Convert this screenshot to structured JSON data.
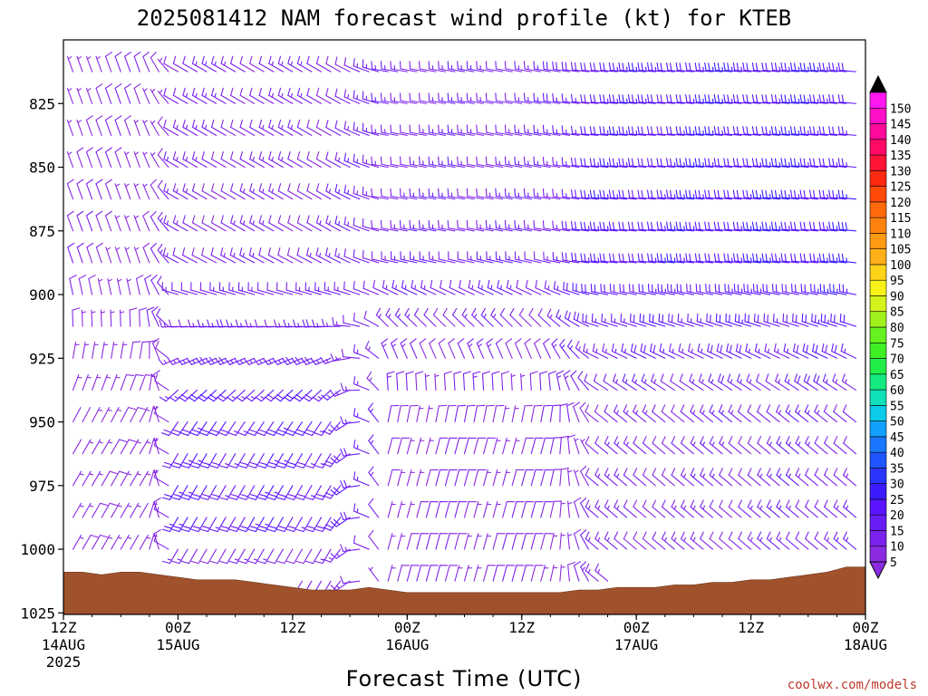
{
  "chart_data": {
    "type": "wind-barb-time-height",
    "title": "2025081412 NAM forecast wind profile (kt) for KTEB",
    "xlabel": "Forecast Time (UTC)",
    "ylabel": "",
    "credit": "coolwx.com/models",
    "y_axis": {
      "unit": "mb",
      "inverted": true,
      "ylim": [
        1025,
        800
      ],
      "ticks": [
        825,
        850,
        875,
        900,
        925,
        950,
        975,
        1000,
        1025
      ]
    },
    "x_axis": {
      "xlim_hours": [
        0,
        84
      ],
      "ticks": [
        {
          "hour": 0,
          "lines": [
            "12Z",
            "14AUG",
            "2025"
          ]
        },
        {
          "hour": 12,
          "lines": [
            "00Z",
            "15AUG"
          ]
        },
        {
          "hour": 24,
          "lines": [
            "12Z"
          ]
        },
        {
          "hour": 36,
          "lines": [
            "00Z",
            "16AUG"
          ]
        },
        {
          "hour": 48,
          "lines": [
            "12Z"
          ]
        },
        {
          "hour": 60,
          "lines": [
            "00Z",
            "17AUG"
          ]
        },
        {
          "hour": 72,
          "lines": [
            "12Z"
          ]
        },
        {
          "hour": 84,
          "lines": [
            "00Z",
            "18AUG"
          ]
        }
      ]
    },
    "colorbar": {
      "unit": "kt",
      "levels": [
        5,
        10,
        15,
        20,
        25,
        30,
        35,
        40,
        45,
        50,
        55,
        60,
        65,
        70,
        75,
        80,
        85,
        90,
        95,
        100,
        105,
        110,
        115,
        120,
        125,
        130,
        135,
        140,
        145,
        150
      ],
      "colors": [
        "#8a2be2",
        "#7b22ee",
        "#6a1cf5",
        "#5a14ff",
        "#3a1cff",
        "#2a34ff",
        "#1f55ff",
        "#1978ff",
        "#12a0ff",
        "#0ccbe8",
        "#10e0b8",
        "#14ea80",
        "#22ee4a",
        "#3ef024",
        "#66f21e",
        "#a0f21e",
        "#d6f21c",
        "#f8f21a",
        "#ffd21a",
        "#ffb018",
        "#ff9a14",
        "#ff8210",
        "#ff6a0c",
        "#ff4a08",
        "#ff2a10",
        "#ff1436",
        "#ff0a66",
        "#ff0a9a",
        "#ff10c8",
        "#ff18f0"
      ]
    },
    "surface_pressure": {
      "color": "#a0522d",
      "points": [
        [
          0,
          1009
        ],
        [
          2,
          1009
        ],
        [
          4,
          1010
        ],
        [
          6,
          1009
        ],
        [
          8,
          1009
        ],
        [
          10,
          1010
        ],
        [
          12,
          1011
        ],
        [
          14,
          1012
        ],
        [
          16,
          1012
        ],
        [
          18,
          1012
        ],
        [
          20,
          1013
        ],
        [
          22,
          1014
        ],
        [
          24,
          1015
        ],
        [
          26,
          1016
        ],
        [
          28,
          1016
        ],
        [
          30,
          1016
        ],
        [
          32,
          1015
        ],
        [
          34,
          1016
        ],
        [
          36,
          1017
        ],
        [
          38,
          1017
        ],
        [
          40,
          1017
        ],
        [
          42,
          1017
        ],
        [
          44,
          1017
        ],
        [
          46,
          1017
        ],
        [
          48,
          1017
        ],
        [
          50,
          1017
        ],
        [
          52,
          1017
        ],
        [
          54,
          1016
        ],
        [
          56,
          1016
        ],
        [
          58,
          1015
        ],
        [
          60,
          1015
        ],
        [
          62,
          1015
        ],
        [
          64,
          1014
        ],
        [
          66,
          1014
        ],
        [
          68,
          1013
        ],
        [
          70,
          1013
        ],
        [
          72,
          1012
        ],
        [
          74,
          1012
        ],
        [
          76,
          1011
        ],
        [
          78,
          1010
        ],
        [
          80,
          1009
        ],
        [
          82,
          1007
        ],
        [
          84,
          1007
        ]
      ]
    },
    "wind_field_summary": {
      "barb_time_step_hours": 1,
      "barb_pressure_step_mb": 12.5,
      "description_keys": [
        {
          "hours": [
            0,
            10
          ],
          "low_level": "light northeast",
          "upper": "north to north-northeast 5-10 kt"
        },
        {
          "hours": [
            14,
            32
          ],
          "low_level": "south to southwest 15-25 kt",
          "upper": "northwest 5-15 kt"
        },
        {
          "hours": [
            32,
            54
          ],
          "low_level": "north to northeast 5-15 kt",
          "upper": "west 10-15 kt"
        },
        {
          "hours": [
            54,
            84
          ],
          "low_level": "northwest 5-15 kt",
          "upper": "west 15-25 kt"
        }
      ]
    }
  }
}
